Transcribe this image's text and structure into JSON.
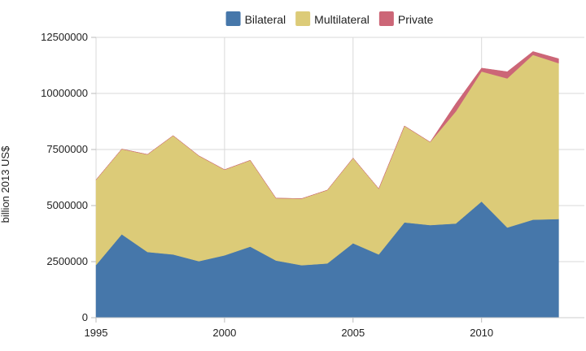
{
  "chart_data": {
    "type": "area",
    "stacked": true,
    "title": "",
    "xlabel": "",
    "ylabel": "billion 2013 US$",
    "x": [
      1995,
      1996,
      1997,
      1998,
      1999,
      2000,
      2001,
      2002,
      2003,
      2004,
      2005,
      2006,
      2007,
      2008,
      2009,
      2010,
      2011,
      2012,
      2013
    ],
    "xlim": [
      1995,
      2014
    ],
    "ylim": [
      0,
      12500000
    ],
    "x_ticks": [
      "1995",
      "2000",
      "2005",
      "2010"
    ],
    "y_ticks": [
      "0",
      "2500000",
      "5000000",
      "7500000",
      "10000000",
      "12500000"
    ],
    "grid": true,
    "legend_position": "top-center",
    "series": [
      {
        "name": "Bilateral",
        "color": "#4677aa",
        "values": [
          2350000,
          3720000,
          2930000,
          2820000,
          2520000,
          2780000,
          3170000,
          2550000,
          2340000,
          2420000,
          3320000,
          2820000,
          4250000,
          4130000,
          4200000,
          5180000,
          4020000,
          4370000,
          4400000
        ]
      },
      {
        "name": "Multilateral",
        "color": "#dccb78",
        "values": [
          3800000,
          3800000,
          4350000,
          5300000,
          4700000,
          3820000,
          3850000,
          2780000,
          2970000,
          3270000,
          3800000,
          2930000,
          4300000,
          3700000,
          5000000,
          5800000,
          6650000,
          7350000,
          6950000
        ]
      },
      {
        "name": "Private",
        "color": "#cc6677",
        "values": [
          0,
          0,
          0,
          0,
          0,
          0,
          0,
          0,
          0,
          0,
          0,
          0,
          0,
          0,
          350000,
          150000,
          300000,
          150000,
          200000
        ]
      }
    ]
  }
}
